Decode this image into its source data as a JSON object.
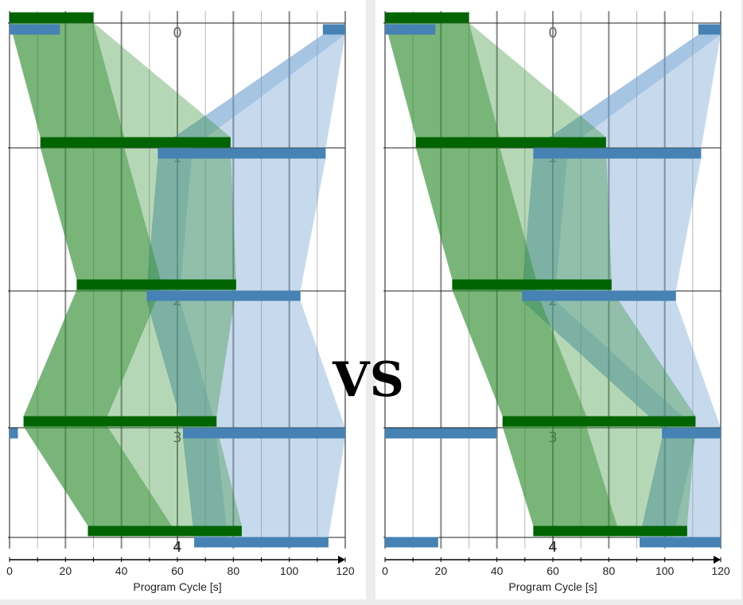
{
  "comparison_label": "VS",
  "xlabel": "Program Cycle [s]",
  "x_ticks": [
    "0",
    "20",
    "40",
    "60",
    "80",
    "100",
    "120"
  ],
  "x_range": [
    0,
    120
  ],
  "station_labels": [
    "0",
    "1",
    "2",
    "3",
    "4"
  ],
  "colors": {
    "green_bar": "#006400",
    "green_band": "#2e8b2e",
    "blue_bar": "#4682b4",
    "blue_band": "#6b9fd0",
    "grid": "#999999"
  },
  "panels": [
    {
      "id": "left",
      "green_bars": [
        {
          "station": 0,
          "start": 0,
          "end": 30
        },
        {
          "station": 1,
          "start": 11,
          "end": 79
        },
        {
          "station": 2,
          "start": 24,
          "end": 81
        },
        {
          "station": 3,
          "start": 5,
          "end": 74
        },
        {
          "station": 4,
          "start": 28,
          "end": 83
        }
      ],
      "blue_bars": [
        {
          "station": 0,
          "segments": [
            [
              0,
              18
            ],
            [
              112,
              120
            ]
          ]
        },
        {
          "station": 1,
          "segments": [
            [
              53,
              113
            ]
          ]
        },
        {
          "station": 2,
          "segments": [
            [
              49,
              104
            ]
          ]
        },
        {
          "station": 3,
          "segments": [
            [
              0,
              3
            ],
            [
              62,
              120
            ]
          ]
        },
        {
          "station": 4,
          "segments": [
            [
              66,
              114
            ]
          ]
        }
      ]
    },
    {
      "id": "right",
      "green_bars": [
        {
          "station": 0,
          "start": 0,
          "end": 30
        },
        {
          "station": 1,
          "start": 11,
          "end": 79
        },
        {
          "station": 2,
          "start": 24,
          "end": 81
        },
        {
          "station": 3,
          "start": 42,
          "end": 111
        },
        {
          "station": 4,
          "start": 53,
          "end": 108
        }
      ],
      "blue_bars": [
        {
          "station": 0,
          "segments": [
            [
              0,
              18
            ],
            [
              112,
              120
            ]
          ]
        },
        {
          "station": 1,
          "segments": [
            [
              53,
              113
            ]
          ]
        },
        {
          "station": 2,
          "segments": [
            [
              49,
              104
            ]
          ]
        },
        {
          "station": 3,
          "segments": [
            [
              0,
              40
            ],
            [
              99,
              120
            ]
          ]
        },
        {
          "station": 4,
          "segments": [
            [
              0,
              19
            ],
            [
              91,
              120
            ]
          ]
        }
      ]
    }
  ]
}
